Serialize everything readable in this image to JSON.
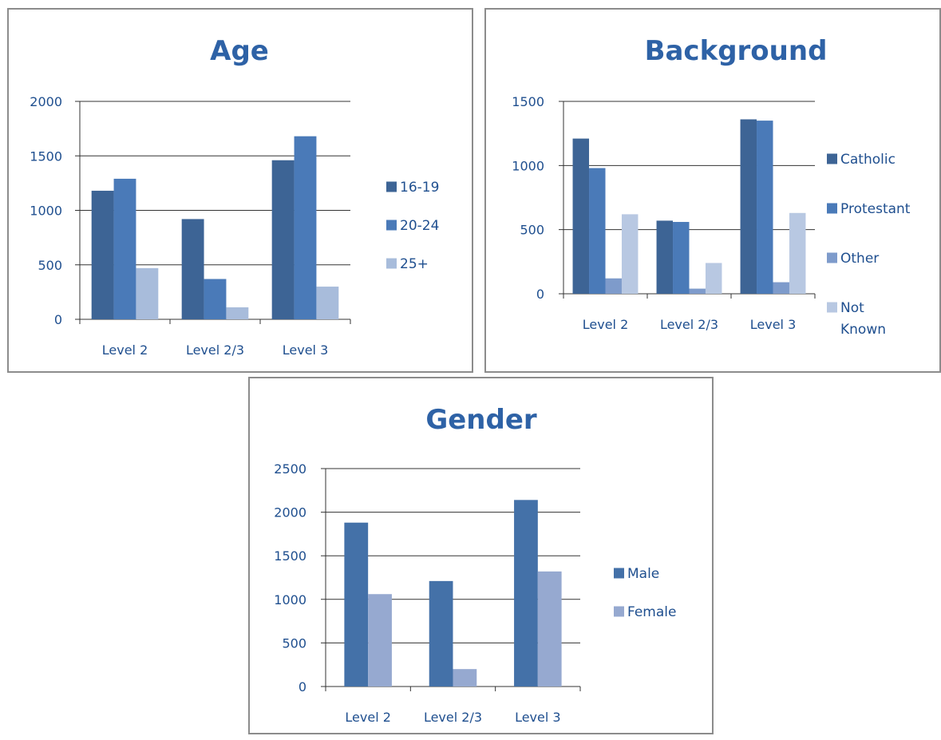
{
  "chart_data": [
    {
      "type": "bar",
      "title": "Age",
      "categories": [
        "Level 2",
        "Level 2/3",
        "Level 3"
      ],
      "series": [
        {
          "name": "16-19",
          "values": [
            1180,
            920,
            1460
          ],
          "color": "#3d6495"
        },
        {
          "name": "20-24",
          "values": [
            1290,
            370,
            1680
          ],
          "color": "#4a7ab8"
        },
        {
          "name": "25+",
          "values": [
            470,
            110,
            300
          ],
          "color": "#a8bcdb"
        }
      ],
      "ylim": [
        0,
        2000
      ],
      "yticks": [
        0,
        500,
        1000,
        1500,
        2000
      ],
      "grid": true,
      "legend": "right"
    },
    {
      "type": "bar",
      "title": "Background",
      "categories": [
        "Level 2",
        "Level 2/3",
        "Level 3"
      ],
      "series": [
        {
          "name": "Catholic",
          "values": [
            1210,
            570,
            1360
          ],
          "color": "#3d6495"
        },
        {
          "name": "Protestant",
          "values": [
            980,
            560,
            1350
          ],
          "color": "#4a7ab8"
        },
        {
          "name": "Other",
          "values": [
            120,
            40,
            90
          ],
          "color": "#7e9bcb"
        },
        {
          "name": "Not Known",
          "values": [
            620,
            240,
            630
          ],
          "color": "#b8c8e2"
        }
      ],
      "ylim": [
        0,
        1500
      ],
      "yticks": [
        0,
        500,
        1000,
        1500
      ],
      "grid": true,
      "legend": "right"
    },
    {
      "type": "bar",
      "title": "Gender",
      "categories": [
        "Level 2",
        "Level 2/3",
        "Level 3"
      ],
      "series": [
        {
          "name": "Male",
          "values": [
            1880,
            1210,
            2140
          ],
          "color": "#4471a8"
        },
        {
          "name": "Female",
          "values": [
            1060,
            200,
            1320
          ],
          "color": "#96a9d0"
        }
      ],
      "ylim": [
        0,
        2500
      ],
      "yticks": [
        0,
        500,
        1000,
        1500,
        2000,
        2500
      ],
      "grid": true,
      "legend": "right"
    }
  ],
  "style": {
    "title_color": "#2e62a6",
    "label_color": "#1f4f8f",
    "axis_color": "#333333",
    "grid_color": "#333333",
    "border_color": "#8c8c8c"
  }
}
